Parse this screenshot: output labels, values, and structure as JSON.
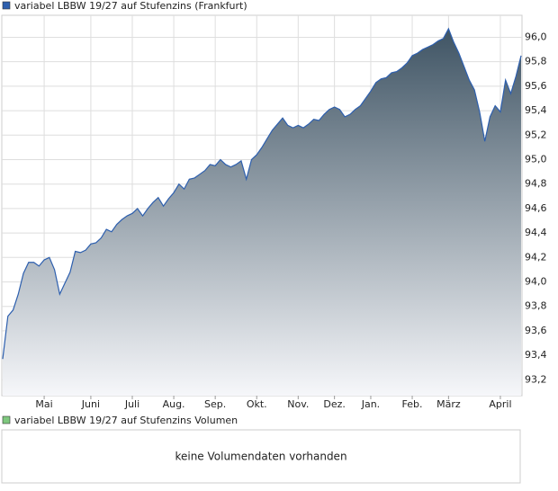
{
  "chart_data": {
    "type": "area",
    "categories": [
      null,
      null,
      null,
      null,
      null,
      null,
      null,
      null,
      "Mai",
      null,
      null,
      null,
      null,
      null,
      null,
      null,
      null,
      "Juni",
      null,
      null,
      null,
      null,
      null,
      null,
      null,
      "Juli",
      null,
      null,
      null,
      null,
      null,
      null,
      null,
      "Aug.",
      null,
      null,
      null,
      null,
      null,
      null,
      null,
      "Sep.",
      null,
      null,
      null,
      null,
      null,
      null,
      null,
      "Okt.",
      null,
      null,
      null,
      null,
      null,
      null,
      null,
      "Nov.",
      null,
      null,
      null,
      null,
      null,
      null,
      "Dez.",
      null,
      null,
      null,
      null,
      null,
      null,
      "Jan.",
      null,
      null,
      null,
      null,
      null,
      null,
      null,
      "Feb.",
      null,
      null,
      null,
      null,
      null,
      null,
      "März",
      null,
      null,
      null,
      null,
      null,
      null,
      null,
      null,
      null,
      "April",
      null,
      null,
      null,
      null
    ],
    "series": [
      {
        "name": "variabel LBBW 19/27 auf Stufenzins (Frankfurt)",
        "color": "#2d5fae",
        "values": [
          93.37,
          93.72,
          93.77,
          93.9,
          94.07,
          94.16,
          94.16,
          94.13,
          94.18,
          94.2,
          94.1,
          93.9,
          93.99,
          94.08,
          94.25,
          94.24,
          94.26,
          94.31,
          94.32,
          94.36,
          94.43,
          94.41,
          94.47,
          94.51,
          94.54,
          94.56,
          94.6,
          94.54,
          94.6,
          94.65,
          94.69,
          94.62,
          94.68,
          94.73,
          94.8,
          94.76,
          94.84,
          94.85,
          94.88,
          94.91,
          94.96,
          94.95,
          95.0,
          94.96,
          94.94,
          94.96,
          94.99,
          94.84,
          95.0,
          95.04,
          95.1,
          95.17,
          95.24,
          95.29,
          95.34,
          95.28,
          95.26,
          95.28,
          95.26,
          95.29,
          95.33,
          95.32,
          95.37,
          95.41,
          95.43,
          95.41,
          95.35,
          95.37,
          95.41,
          95.44,
          95.5,
          95.56,
          95.63,
          95.66,
          95.67,
          95.71,
          95.72,
          95.75,
          95.79,
          95.85,
          95.87,
          95.9,
          95.92,
          95.94,
          95.97,
          95.99,
          96.07,
          95.96,
          95.87,
          95.76,
          95.65,
          95.57,
          95.39,
          95.15,
          95.35,
          95.44,
          95.39,
          95.65,
          95.54,
          95.68,
          95.85
        ]
      }
    ],
    "ylim": [
      93.07,
      96.18
    ],
    "yticks": [
      {
        "value": 93.2,
        "label": "93,2"
      },
      {
        "value": 93.4,
        "label": "93,4"
      },
      {
        "value": 93.6,
        "label": "93,6"
      },
      {
        "value": 93.8,
        "label": "93,8"
      },
      {
        "value": 94.0,
        "label": "94,0"
      },
      {
        "value": 94.2,
        "label": "94,2"
      },
      {
        "value": 94.4,
        "label": "94,4"
      },
      {
        "value": 94.6,
        "label": "94,6"
      },
      {
        "value": 94.8,
        "label": "94,8"
      },
      {
        "value": 95.0,
        "label": "95,0"
      },
      {
        "value": 95.2,
        "label": "95,2"
      },
      {
        "value": 95.4,
        "label": "95,4"
      },
      {
        "value": 95.6,
        "label": "95,6"
      },
      {
        "value": 95.8,
        "label": "95,8"
      },
      {
        "value": 96.0,
        "label": "96,0"
      }
    ],
    "grid": true
  },
  "volume_panel": {
    "legend": "variabel LBBW 19/27 auf Stufenzins Volumen",
    "color": "#7ec87e",
    "message": "keine Volumendaten vorhanden"
  }
}
